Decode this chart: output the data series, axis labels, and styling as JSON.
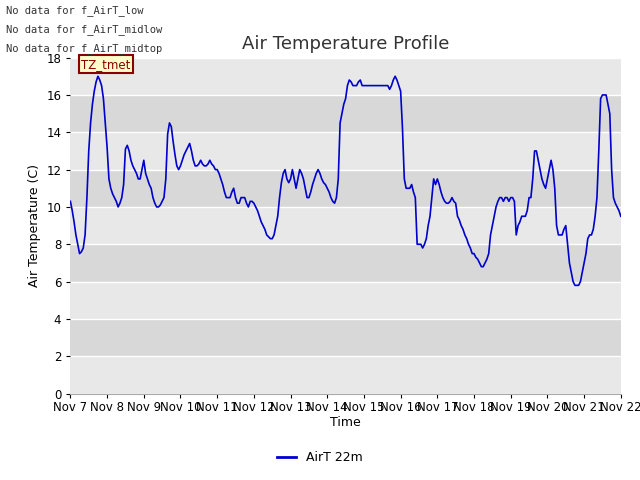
{
  "title": "Air Temperature Profile",
  "xlabel": "Time",
  "ylabel": "Air Temperature (C)",
  "legend_label": "AirT 22m",
  "line_color": "#0000cc",
  "line_width": 1.2,
  "ylim": [
    0,
    18
  ],
  "yticks": [
    0,
    2,
    4,
    6,
    8,
    10,
    12,
    14,
    16,
    18
  ],
  "xtick_labels": [
    "Nov 7",
    "Nov 8",
    "Nov 9",
    "Nov 10",
    "Nov 11",
    "Nov 12",
    "Nov 13",
    "Nov 14",
    "Nov 15",
    "Nov 16",
    "Nov 17",
    "Nov 18",
    "Nov 19",
    "Nov 20",
    "Nov 21",
    "Nov 22"
  ],
  "bg_color": "#ffffff",
  "plot_bg_light": "#f0f0f0",
  "plot_bg_dark": "#dcdcdc",
  "grid_color": "#ffffff",
  "annotations_text": [
    "No data for f_AirT_low",
    "No data for f_AirT_midlow",
    "No data for f_AirT_midtop"
  ],
  "tz_label": "TZ_tmet",
  "title_fontsize": 13,
  "axis_fontsize": 9,
  "tick_fontsize": 8.5,
  "x_values": [
    0.0,
    0.05,
    0.1,
    0.15,
    0.2,
    0.25,
    0.3,
    0.35,
    0.4,
    0.45,
    0.5,
    0.55,
    0.6,
    0.65,
    0.7,
    0.75,
    0.8,
    0.85,
    0.9,
    0.95,
    1.0,
    1.05,
    1.1,
    1.15,
    1.2,
    1.25,
    1.3,
    1.35,
    1.4,
    1.45,
    1.5,
    1.55,
    1.6,
    1.65,
    1.7,
    1.75,
    1.8,
    1.85,
    1.9,
    1.95,
    2.0,
    2.05,
    2.1,
    2.15,
    2.2,
    2.25,
    2.3,
    2.35,
    2.4,
    2.45,
    2.5,
    2.55,
    2.6,
    2.65,
    2.7,
    2.75,
    2.8,
    2.85,
    2.9,
    2.95,
    3.0,
    3.05,
    3.1,
    3.15,
    3.2,
    3.25,
    3.3,
    3.35,
    3.4,
    3.45,
    3.5,
    3.55,
    3.6,
    3.65,
    3.7,
    3.75,
    3.8,
    3.85,
    3.9,
    3.95,
    4.0,
    4.05,
    4.1,
    4.15,
    4.2,
    4.25,
    4.3,
    4.35,
    4.4,
    4.45,
    4.5,
    4.55,
    4.6,
    4.65,
    4.7,
    4.75,
    4.8,
    4.85,
    4.9,
    4.95,
    5.0,
    5.05,
    5.1,
    5.15,
    5.2,
    5.25,
    5.3,
    5.35,
    5.4,
    5.45,
    5.5,
    5.55,
    5.6,
    5.65,
    5.7,
    5.75,
    5.8,
    5.85,
    5.9,
    5.95,
    6.0,
    6.05,
    6.1,
    6.15,
    6.2,
    6.25,
    6.3,
    6.35,
    6.4,
    6.45,
    6.5,
    6.55,
    6.6,
    6.65,
    6.7,
    6.75,
    6.8,
    6.85,
    6.9,
    6.95,
    7.0,
    7.05,
    7.1,
    7.15,
    7.2,
    7.25,
    7.3,
    7.35,
    7.4,
    7.45,
    7.5,
    7.55,
    7.6,
    7.65,
    7.7,
    7.75,
    7.8,
    7.85,
    7.9,
    7.95,
    8.0,
    8.05,
    8.1,
    8.15,
    8.2,
    8.25,
    8.3,
    8.35,
    8.4,
    8.45,
    8.5,
    8.55,
    8.6,
    8.65,
    8.7,
    8.75,
    8.8,
    8.85,
    8.9,
    8.95,
    9.0,
    9.05,
    9.1,
    9.15,
    9.2,
    9.25,
    9.3,
    9.35,
    9.4,
    9.45,
    9.5,
    9.55,
    9.6,
    9.65,
    9.7,
    9.75,
    9.8,
    9.85,
    9.9,
    9.95,
    10.0,
    10.05,
    10.1,
    10.15,
    10.2,
    10.25,
    10.3,
    10.35,
    10.4,
    10.45,
    10.5,
    10.55,
    10.6,
    10.65,
    10.7,
    10.75,
    10.8,
    10.85,
    10.9,
    10.95,
    11.0,
    11.05,
    11.1,
    11.15,
    11.2,
    11.25,
    11.3,
    11.35,
    11.4,
    11.45,
    11.5,
    11.55,
    11.6,
    11.65,
    11.7,
    11.75,
    11.8,
    11.85,
    11.9,
    11.95,
    12.0,
    12.05,
    12.1,
    12.15,
    12.2,
    12.25,
    12.3,
    12.35,
    12.4,
    12.45,
    12.5,
    12.55,
    12.6,
    12.65,
    12.7,
    12.75,
    12.8,
    12.85,
    12.9,
    12.95,
    13.0,
    13.05,
    13.1,
    13.15,
    13.2,
    13.25,
    13.3,
    13.35,
    13.4,
    13.45,
    13.5,
    13.55,
    13.6,
    13.65,
    13.7,
    13.75,
    13.8,
    13.85,
    13.9,
    13.95,
    14.0,
    14.05,
    14.1,
    14.15,
    14.2,
    14.25,
    14.3,
    14.35,
    14.4,
    14.45,
    14.5,
    14.55,
    14.6,
    14.65,
    14.7,
    14.75,
    14.8,
    14.85,
    14.9,
    14.95,
    15.0
  ],
  "y_values": [
    10.3,
    9.8,
    9.2,
    8.5,
    8.0,
    7.5,
    7.6,
    7.8,
    8.5,
    10.5,
    13.0,
    14.5,
    15.5,
    16.2,
    16.7,
    17.0,
    16.8,
    16.5,
    15.8,
    14.5,
    13.2,
    11.5,
    11.0,
    10.7,
    10.5,
    10.3,
    10.0,
    10.2,
    10.5,
    11.2,
    13.1,
    13.3,
    13.0,
    12.5,
    12.2,
    12.0,
    11.8,
    11.5,
    11.5,
    12.0,
    12.5,
    11.8,
    11.5,
    11.2,
    11.0,
    10.5,
    10.2,
    10.0,
    10.0,
    10.1,
    10.3,
    10.5,
    11.5,
    13.9,
    14.5,
    14.3,
    13.5,
    12.8,
    12.2,
    12.0,
    12.2,
    12.5,
    12.8,
    13.0,
    13.2,
    13.4,
    13.0,
    12.5,
    12.2,
    12.2,
    12.3,
    12.5,
    12.3,
    12.2,
    12.2,
    12.3,
    12.5,
    12.3,
    12.2,
    12.0,
    12.0,
    11.8,
    11.5,
    11.2,
    10.8,
    10.5,
    10.5,
    10.5,
    10.8,
    11.0,
    10.5,
    10.2,
    10.2,
    10.5,
    10.5,
    10.5,
    10.2,
    10.0,
    10.3,
    10.3,
    10.2,
    10.0,
    9.8,
    9.5,
    9.2,
    9.0,
    8.8,
    8.5,
    8.4,
    8.3,
    8.3,
    8.5,
    9.0,
    9.5,
    10.5,
    11.3,
    11.8,
    12.0,
    11.5,
    11.3,
    11.5,
    12.0,
    11.5,
    11.0,
    11.5,
    12.0,
    11.8,
    11.5,
    11.0,
    10.5,
    10.5,
    10.8,
    11.2,
    11.5,
    11.8,
    12.0,
    11.8,
    11.5,
    11.3,
    11.2,
    11.0,
    10.8,
    10.5,
    10.3,
    10.2,
    10.5,
    11.5,
    14.5,
    15.0,
    15.5,
    15.8,
    16.5,
    16.8,
    16.7,
    16.5,
    16.5,
    16.5,
    16.7,
    16.8,
    16.5,
    16.5,
    16.5,
    16.5,
    16.5,
    16.5,
    16.5,
    16.5,
    16.5,
    16.5,
    16.5,
    16.5,
    16.5,
    16.5,
    16.5,
    16.3,
    16.5,
    16.8,
    17.0,
    16.8,
    16.5,
    16.2,
    14.2,
    11.5,
    11.0,
    11.0,
    11.0,
    11.2,
    10.8,
    10.5,
    8.0,
    8.0,
    8.0,
    7.8,
    8.0,
    8.3,
    9.0,
    9.5,
    10.5,
    11.5,
    11.2,
    11.5,
    11.2,
    10.8,
    10.5,
    10.3,
    10.2,
    10.2,
    10.3,
    10.5,
    10.3,
    10.2,
    9.5,
    9.3,
    9.0,
    8.8,
    8.5,
    8.3,
    8.0,
    7.8,
    7.5,
    7.5,
    7.3,
    7.2,
    7.0,
    6.8,
    6.8,
    7.0,
    7.2,
    7.5,
    8.5,
    9.0,
    9.5,
    10.0,
    10.3,
    10.5,
    10.5,
    10.3,
    10.5,
    10.5,
    10.3,
    10.5,
    10.5,
    10.3,
    8.5,
    9.0,
    9.2,
    9.5,
    9.5,
    9.5,
    9.8,
    10.5,
    10.5,
    11.5,
    13.0,
    13.0,
    12.5,
    12.0,
    11.5,
    11.2,
    11.0,
    11.5,
    12.0,
    12.5,
    12.0,
    11.0,
    9.0,
    8.5,
    8.5,
    8.5,
    8.8,
    9.0,
    8.0,
    7.0,
    6.5,
    6.0,
    5.8,
    5.8,
    5.8,
    6.0,
    6.5,
    7.0,
    7.5,
    8.3,
    8.5,
    8.5,
    8.8,
    9.5,
    10.5,
    13.0,
    15.8,
    16.0,
    16.0,
    16.0,
    15.5,
    15.0,
    12.0,
    10.5,
    10.2,
    10.0,
    9.8,
    9.5
  ]
}
